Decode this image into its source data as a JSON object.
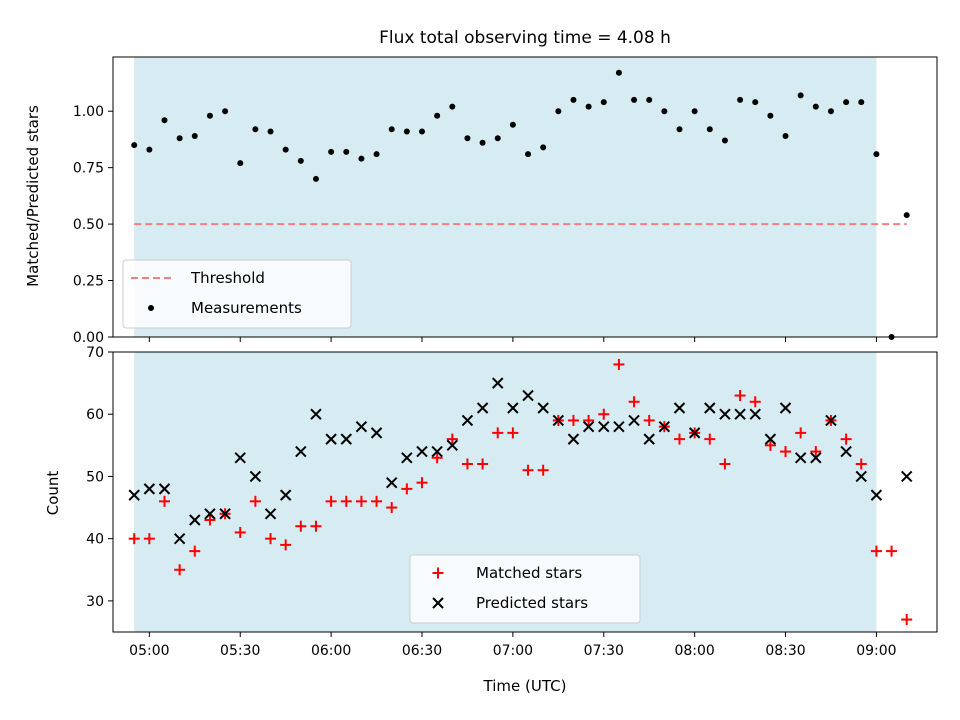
{
  "chart_data": [
    {
      "type": "scatter",
      "title": "Flux total observing time = 4.08 h",
      "ylabel": "Matched/Predicted stars",
      "xlim": [
        "04:48",
        "09:20"
      ],
      "ylim": [
        0,
        1.24
      ],
      "yticks": [
        "0.00",
        "0.25",
        "0.50",
        "0.75",
        "1.00"
      ],
      "shaded_span": [
        "04:55",
        "09:00"
      ],
      "legend": {
        "placement": "lower-left",
        "entries": [
          "Threshold",
          "Measurements"
        ]
      },
      "threshold": {
        "name": "Threshold",
        "value": 0.5,
        "x": [
          "04:55",
          "09:10"
        ],
        "color": "#f08080"
      },
      "series": [
        {
          "name": "Measurements",
          "color": "#000000",
          "x": [
            "04:55",
            "05:00",
            "05:05",
            "05:10",
            "05:15",
            "05:20",
            "05:25",
            "05:30",
            "05:35",
            "05:40",
            "05:45",
            "05:50",
            "05:55",
            "06:00",
            "06:05",
            "06:10",
            "06:15",
            "06:20",
            "06:25",
            "06:30",
            "06:35",
            "06:40",
            "06:45",
            "06:50",
            "06:55",
            "07:00",
            "07:05",
            "07:10",
            "07:15",
            "07:20",
            "07:25",
            "07:30",
            "07:35",
            "07:40",
            "07:45",
            "07:50",
            "07:55",
            "08:00",
            "08:05",
            "08:10",
            "08:15",
            "08:20",
            "08:25",
            "08:30",
            "08:35",
            "08:40",
            "08:45",
            "08:50",
            "08:55",
            "09:00",
            "09:05",
            "09:10"
          ],
          "values": [
            0.85,
            0.83,
            0.96,
            0.88,
            0.89,
            0.98,
            1.0,
            0.77,
            0.92,
            0.91,
            0.83,
            0.78,
            0.7,
            0.82,
            0.82,
            0.79,
            0.81,
            0.92,
            0.91,
            0.91,
            0.98,
            1.02,
            0.88,
            0.86,
            0.88,
            0.94,
            0.81,
            0.84,
            1.0,
            1.05,
            1.02,
            1.04,
            1.17,
            1.05,
            1.05,
            1.0,
            0.92,
            1.0,
            0.92,
            0.87,
            1.05,
            1.04,
            0.98,
            0.89,
            1.07,
            1.02,
            1.0,
            1.04,
            1.04,
            0.81,
            0.0,
            0.54
          ]
        }
      ]
    },
    {
      "type": "scatter",
      "xlabel": "Time (UTC)",
      "ylabel": "Count",
      "xlim": [
        "04:48",
        "09:20"
      ],
      "ylim": [
        25,
        70
      ],
      "xticks": [
        "05:00",
        "05:30",
        "06:00",
        "06:30",
        "07:00",
        "07:30",
        "08:00",
        "08:30",
        "09:00"
      ],
      "yticks": [
        "30",
        "40",
        "50",
        "60",
        "70"
      ],
      "shaded_span": [
        "04:55",
        "09:00"
      ],
      "legend": {
        "placement": "lower-center",
        "entries": [
          "Matched stars",
          "Predicted stars"
        ]
      },
      "series": [
        {
          "name": "Matched stars",
          "marker": "+",
          "color": "#ff0000",
          "x": [
            "04:55",
            "05:00",
            "05:05",
            "05:10",
            "05:15",
            "05:20",
            "05:25",
            "05:30",
            "05:35",
            "05:40",
            "05:45",
            "05:50",
            "05:55",
            "06:00",
            "06:05",
            "06:10",
            "06:15",
            "06:20",
            "06:25",
            "06:30",
            "06:35",
            "06:40",
            "06:45",
            "06:50",
            "06:55",
            "07:00",
            "07:05",
            "07:10",
            "07:15",
            "07:20",
            "07:25",
            "07:30",
            "07:35",
            "07:40",
            "07:45",
            "07:50",
            "07:55",
            "08:00",
            "08:05",
            "08:10",
            "08:15",
            "08:20",
            "08:25",
            "08:30",
            "08:35",
            "08:40",
            "08:45",
            "08:50",
            "08:55",
            "09:00",
            "09:05",
            "09:10"
          ],
          "values": [
            40,
            40,
            46,
            35,
            38,
            43,
            44,
            41,
            46,
            40,
            39,
            42,
            42,
            46,
            46,
            46,
            46,
            45,
            48,
            49,
            53,
            56,
            52,
            52,
            57,
            57,
            51,
            51,
            59,
            59,
            59,
            60,
            68,
            62,
            59,
            58,
            56,
            57,
            56,
            52,
            63,
            62,
            55,
            54,
            57,
            54,
            59,
            56,
            52,
            38,
            38,
            27
          ]
        },
        {
          "name": "Predicted stars",
          "marker": "x",
          "color": "#000000",
          "x": [
            "04:55",
            "05:00",
            "05:05",
            "05:10",
            "05:15",
            "05:20",
            "05:25",
            "05:30",
            "05:35",
            "05:40",
            "05:45",
            "05:50",
            "05:55",
            "06:00",
            "06:05",
            "06:10",
            "06:15",
            "06:20",
            "06:25",
            "06:30",
            "06:35",
            "06:40",
            "06:45",
            "06:50",
            "06:55",
            "07:00",
            "07:05",
            "07:10",
            "07:15",
            "07:20",
            "07:25",
            "07:30",
            "07:35",
            "07:40",
            "07:45",
            "07:50",
            "07:55",
            "08:00",
            "08:05",
            "08:10",
            "08:15",
            "08:20",
            "08:25",
            "08:30",
            "08:35",
            "08:40",
            "08:45",
            "08:50",
            "08:55",
            "09:00",
            "09:10"
          ],
          "values": [
            47,
            48,
            48,
            40,
            43,
            44,
            44,
            53,
            50,
            44,
            47,
            54,
            60,
            56,
            56,
            58,
            57,
            49,
            53,
            54,
            54,
            55,
            59,
            61,
            65,
            61,
            63,
            61,
            59,
            56,
            58,
            58,
            58,
            59,
            56,
            58,
            61,
            57,
            61,
            60,
            60,
            60,
            56,
            61,
            53,
            53,
            59,
            54,
            50,
            47,
            50
          ]
        }
      ]
    }
  ]
}
